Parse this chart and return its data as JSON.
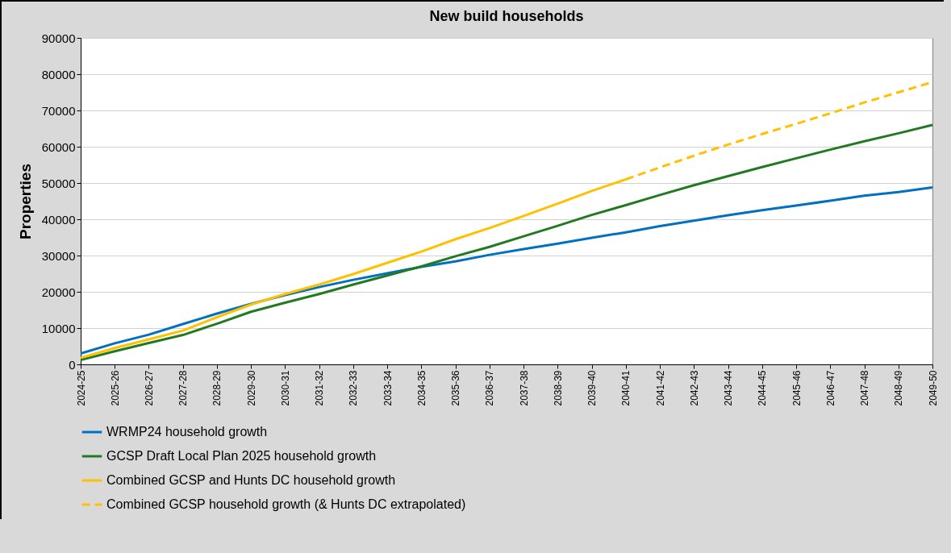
{
  "chart_data": {
    "type": "line",
    "title": "New build households",
    "ylabel": "Properties",
    "categories": [
      "2024-25",
      "2025-26",
      "2026-27",
      "2027-28",
      "2028-29",
      "2029-30",
      "2030-31",
      "2031-32",
      "2032-33",
      "2033-34",
      "2034-35",
      "2035-36",
      "2036-37",
      "2037-38",
      "2038-39",
      "2039-40",
      "2040-41",
      "2041-42",
      "2042-43",
      "2043-44",
      "2044-45",
      "2045-46",
      "2046-47",
      "2047-48",
      "2048-49",
      "2049-50"
    ],
    "series": [
      {
        "name": "WRMP24 household growth",
        "color": "#0070c0",
        "line_style": "solid",
        "values": [
          3000,
          5800,
          8200,
          11100,
          14000,
          16700,
          19100,
          21300,
          23300,
          25100,
          26900,
          28400,
          30200,
          31800,
          33300,
          34900,
          36400,
          38100,
          39600,
          41100,
          42500,
          43800,
          45100,
          46500,
          47500,
          48800
        ]
      },
      {
        "name": "GCSP Draft Local Plan 2025 household growth",
        "color": "#217a22",
        "line_style": "solid",
        "values": [
          1200,
          3600,
          5900,
          8100,
          11200,
          14500,
          17000,
          19400,
          22000,
          24500,
          27000,
          29800,
          32400,
          35300,
          38200,
          41200,
          43900,
          46700,
          49400,
          51900,
          54400,
          56800,
          59200,
          61500,
          63700,
          66000
        ]
      },
      {
        "name": "Combined GCSP and Hunts DC household growth",
        "color": "#ffc000",
        "line_style": "solid",
        "values": [
          1800,
          4500,
          6900,
          9300,
          13000,
          16500,
          19400,
          22000,
          24900,
          28000,
          31100,
          34500,
          37600,
          40900,
          44300,
          47800,
          51000,
          null,
          null,
          null,
          null,
          null,
          null,
          null,
          null,
          null
        ]
      },
      {
        "name": "Combined GCSP household growth (& Hunts DC extrapolated)",
        "color": "#ffc000",
        "line_style": "dashed",
        "values": [
          null,
          null,
          null,
          null,
          null,
          null,
          null,
          null,
          null,
          null,
          null,
          null,
          null,
          null,
          null,
          null,
          51000,
          54300,
          57500,
          60600,
          63500,
          66300,
          69200,
          72200,
          75000,
          77800
        ]
      }
    ],
    "ylim": [
      0,
      90000
    ],
    "yticks": [
      0,
      10000,
      20000,
      30000,
      40000,
      50000,
      60000,
      70000,
      80000,
      90000
    ],
    "grid": "y",
    "legend": "bottom"
  }
}
